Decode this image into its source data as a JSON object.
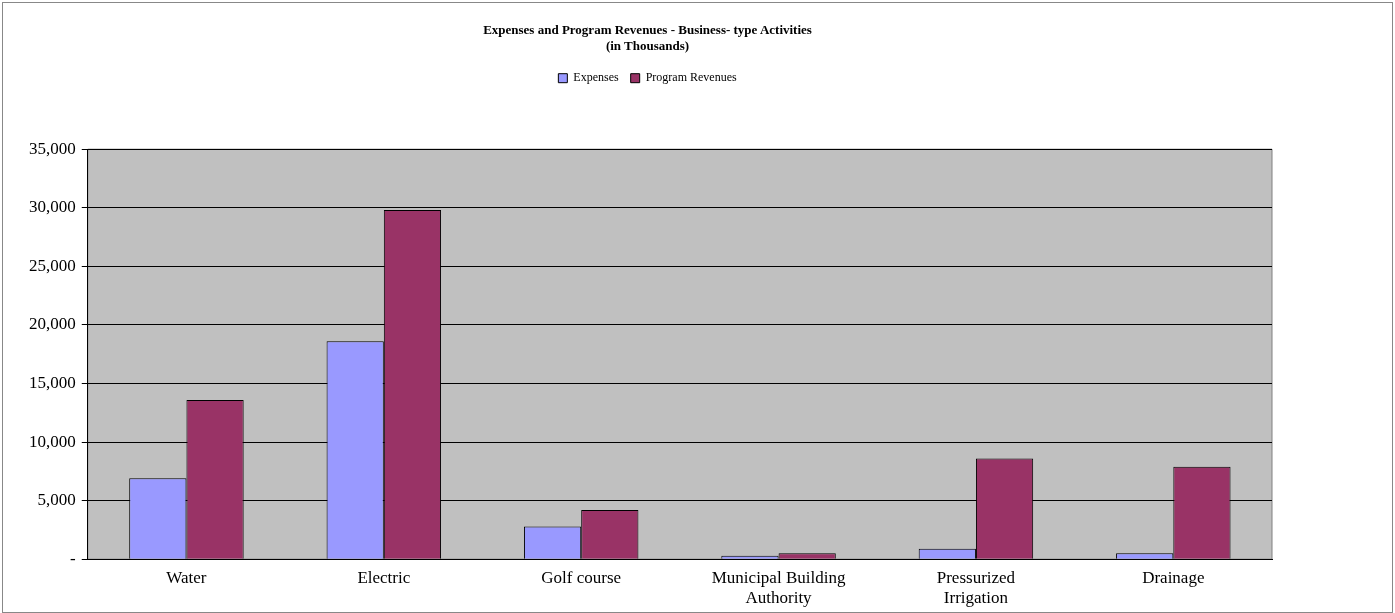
{
  "chart_data": {
    "type": "bar",
    "title": "Expenses and Program Revenues - Business- type Activities\n(in Thousands)",
    "categories": [
      "Water",
      "Electric",
      "Golf course",
      "Municipal Building Authority",
      "Pressurized Irrigation",
      "Drainage"
    ],
    "series": [
      {
        "name": "Expenses",
        "color": "#9999ff",
        "values": [
          6900,
          18600,
          2800,
          300,
          900,
          500
        ]
      },
      {
        "name": "Program Revenues",
        "color": "#993366",
        "values": [
          13600,
          29800,
          4200,
          500,
          8600,
          7900
        ]
      }
    ],
    "ylim": [
      0,
      35000
    ],
    "yticks": [
      {
        "value": 0,
        "label": "-"
      },
      {
        "value": 5000,
        "label": "5,000"
      },
      {
        "value": 10000,
        "label": "10,000"
      },
      {
        "value": 15000,
        "label": "15,000"
      },
      {
        "value": 20000,
        "label": "20,000"
      },
      {
        "value": 25000,
        "label": "25,000"
      },
      {
        "value": 30000,
        "label": "30,000"
      },
      {
        "value": 35000,
        "label": "35,000"
      }
    ],
    "grid": "y",
    "legend": "top"
  }
}
